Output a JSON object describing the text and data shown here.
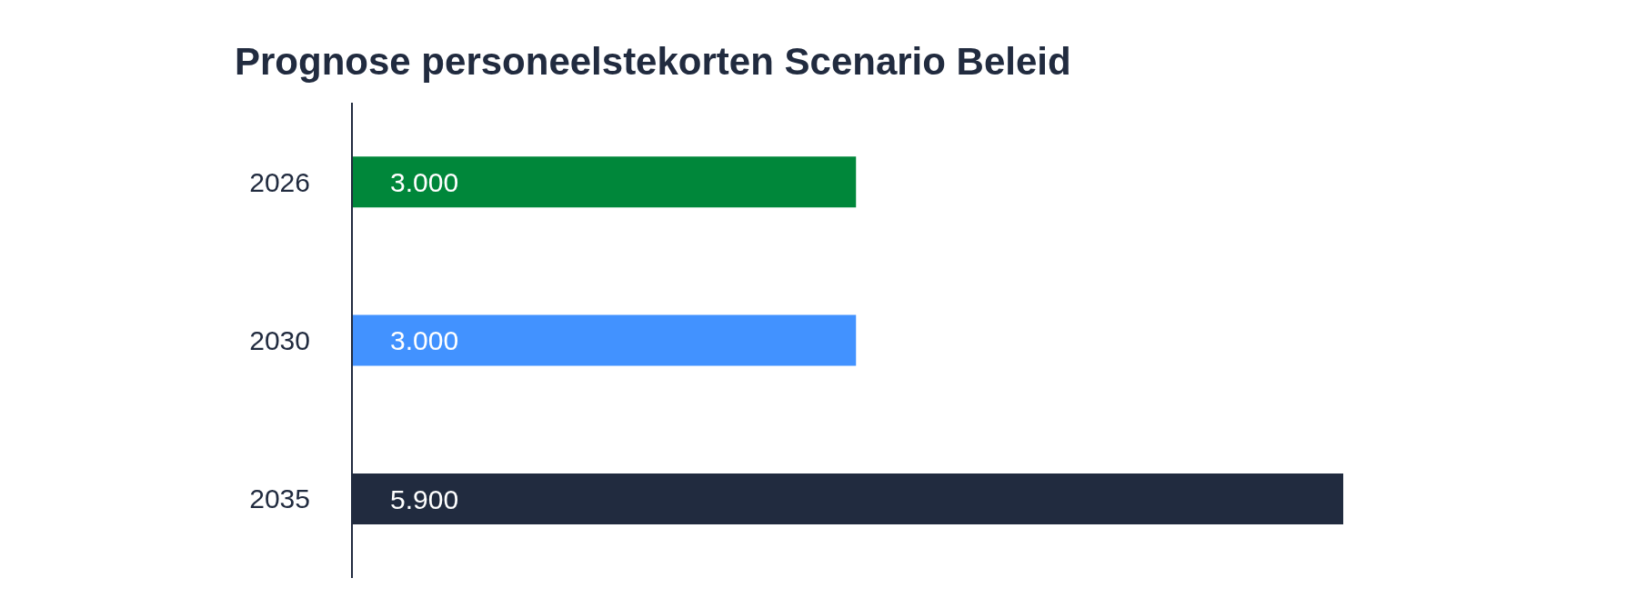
{
  "chart_data": {
    "type": "bar",
    "orientation": "horizontal",
    "title": "Prognose personeelstekorten Scenario Beleid",
    "categories": [
      "2026",
      "2030",
      "2035"
    ],
    "values": [
      3000,
      3000,
      5900
    ],
    "colors": [
      "#00873a",
      "#4292ff",
      "#212b3f"
    ],
    "value_labels": [
      "3.000",
      "3.000",
      "5.900"
    ]
  }
}
